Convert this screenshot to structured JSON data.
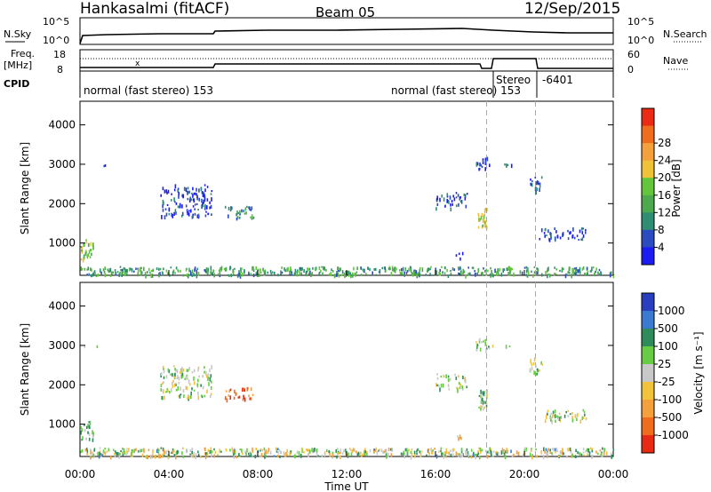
{
  "header": {
    "station": "Hankasalmi (fitACF)",
    "beam": "Beam 05",
    "date": "12/Sep/2015"
  },
  "nsky_panel": {
    "left_label": "N.Sky",
    "right_label": "N.Search",
    "left_ticks": [
      "10^5",
      "10^0"
    ],
    "right_ticks": [
      "10^5",
      "10^0"
    ]
  },
  "freq_panel": {
    "left_label_1": "Freq.",
    "left_label_2": "[MHz]",
    "left_ticks": [
      "18",
      "8"
    ],
    "right_label": "Nave",
    "right_ticks": [
      "60",
      "0"
    ],
    "cpid_label": "CPID"
  },
  "cpid_labels": [
    {
      "text": "normal (fast stereo) 153"
    },
    {
      "text": "normal (fast stereo) 153"
    },
    {
      "text": "Stereo"
    },
    {
      "text": "-6401"
    }
  ],
  "x_axis": {
    "title": "Time UT",
    "ticks": [
      "00:00",
      "04:00",
      "08:00",
      "12:00",
      "16:00",
      "20:00",
      "00:00"
    ]
  },
  "chart_data": [
    {
      "type": "heatmap",
      "title": "",
      "xlabel": "",
      "ylabel": "Slant Range [km]",
      "xlim": [
        0,
        24
      ],
      "ylim": [
        180,
        4600
      ],
      "yticks": [
        "1000",
        "2000",
        "3000",
        "4000"
      ],
      "ytick_values": [
        1000,
        2000,
        3000,
        4000
      ],
      "colorbar": {
        "label": "Power [dB]",
        "ticks": [
          "4",
          "8",
          "12",
          "16",
          "20",
          "24",
          "28"
        ],
        "colors": [
          "#1c1cf2",
          "#2b4bc0",
          "#2f8d73",
          "#4da94d",
          "#63c63a",
          "#f0c23a",
          "#f4a03c",
          "#ef6c1e",
          "#ea2a14"
        ]
      },
      "scatter_clusters": [
        {
          "t_start": 0.0,
          "t_end": 24.0,
          "r_min": 200,
          "r_max": 420,
          "level": 0.35,
          "density": 0.55
        },
        {
          "t_start": 0.0,
          "t_end": 0.6,
          "r_min": 600,
          "r_max": 1100,
          "level": 0.45,
          "density": 0.5
        },
        {
          "t_start": 0.0,
          "t_end": 2.2,
          "r_min": 2980,
          "r_max": 3020,
          "level": 0.15,
          "density": 0.15
        },
        {
          "t_start": 3.6,
          "t_end": 5.9,
          "r_min": 1700,
          "r_max": 2500,
          "level": 0.12,
          "density": 0.35
        },
        {
          "t_start": 6.5,
          "t_end": 7.8,
          "r_min": 1650,
          "r_max": 1950,
          "level": 0.3,
          "density": 0.4
        },
        {
          "t_start": 16.0,
          "t_end": 17.4,
          "r_min": 1900,
          "r_max": 2300,
          "level": 0.12,
          "density": 0.35
        },
        {
          "t_start": 17.9,
          "t_end": 18.3,
          "r_min": 1400,
          "r_max": 1900,
          "level": 0.6,
          "density": 0.8
        },
        {
          "t_start": 17.8,
          "t_end": 18.4,
          "r_min": 2900,
          "r_max": 3200,
          "level": 0.12,
          "density": 0.5
        },
        {
          "t_start": 18.3,
          "t_end": 19.6,
          "r_min": 2980,
          "r_max": 3020,
          "level": 0.1,
          "density": 0.4
        },
        {
          "t_start": 20.2,
          "t_end": 20.8,
          "r_min": 2300,
          "r_max": 2700,
          "level": 0.2,
          "density": 0.4
        },
        {
          "t_start": 20.6,
          "t_end": 22.8,
          "r_min": 1100,
          "r_max": 1400,
          "level": 0.1,
          "density": 0.35
        },
        {
          "t_start": 16.9,
          "t_end": 17.2,
          "r_min": 620,
          "r_max": 780,
          "level": 0.15,
          "density": 0.5
        }
      ],
      "note_marker_times": [
        18.3,
        20.5
      ]
    },
    {
      "type": "heatmap",
      "title": "",
      "xlabel": "Time UT",
      "ylabel": "Slant Range [km]",
      "xlim": [
        0,
        24
      ],
      "ylim": [
        180,
        4600
      ],
      "yticks": [
        "1000",
        "2000",
        "3000",
        "4000"
      ],
      "ytick_values": [
        1000,
        2000,
        3000,
        4000
      ],
      "colorbar": {
        "label": "Velocity [m s⁻¹]",
        "ticks": [
          "1000",
          "500",
          "100",
          "25",
          "-25",
          "-100",
          "-500",
          "-1000"
        ],
        "colors": [
          "#2a3fc0",
          "#3a7ad0",
          "#2f8c5a",
          "#66cc44",
          "#c8c8c8",
          "#f2c23c",
          "#f4a03c",
          "#ef6c1e",
          "#e82a14"
        ]
      },
      "scatter_clusters": [
        {
          "t_start": 0.0,
          "t_end": 24.0,
          "r_min": 200,
          "r_max": 420,
          "level": 0.35,
          "density": 0.55
        },
        {
          "t_start": 0.0,
          "t_end": 0.6,
          "r_min": 600,
          "r_max": 1100,
          "level": 0.4,
          "density": 0.45
        },
        {
          "t_start": 0.0,
          "t_end": 2.2,
          "r_min": 2980,
          "r_max": 3020,
          "level": 0.45,
          "density": 0.15
        },
        {
          "t_start": 3.6,
          "t_end": 5.9,
          "r_min": 1700,
          "r_max": 2500,
          "level": 0.45,
          "density": 0.35
        },
        {
          "t_start": 6.5,
          "t_end": 7.8,
          "r_min": 1650,
          "r_max": 1950,
          "level": 0.85,
          "density": 0.4
        },
        {
          "t_start": 16.0,
          "t_end": 17.4,
          "r_min": 1900,
          "r_max": 2300,
          "level": 0.45,
          "density": 0.35
        },
        {
          "t_start": 17.9,
          "t_end": 18.3,
          "r_min": 1400,
          "r_max": 1900,
          "level": 0.45,
          "density": 0.8
        },
        {
          "t_start": 17.8,
          "t_end": 18.4,
          "r_min": 2900,
          "r_max": 3200,
          "level": 0.45,
          "density": 0.5
        },
        {
          "t_start": 18.3,
          "t_end": 19.6,
          "r_min": 2980,
          "r_max": 3020,
          "level": 0.45,
          "density": 0.4
        },
        {
          "t_start": 20.2,
          "t_end": 20.8,
          "r_min": 2300,
          "r_max": 2700,
          "level": 0.45,
          "density": 0.4
        },
        {
          "t_start": 20.6,
          "t_end": 22.8,
          "r_min": 1100,
          "r_max": 1400,
          "level": 0.45,
          "density": 0.35
        },
        {
          "t_start": 16.9,
          "t_end": 17.2,
          "r_min": 620,
          "r_max": 780,
          "level": 0.6,
          "density": 0.5
        }
      ],
      "note_marker_times": [
        18.3,
        20.5
      ]
    }
  ]
}
